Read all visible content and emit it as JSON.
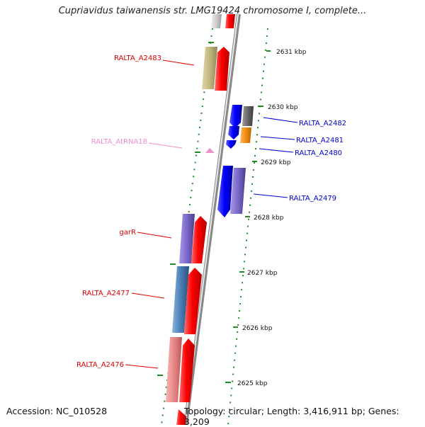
{
  "title": "Cupriavidus taiwanensis str. LMG19424 chromosome I, complete...",
  "footer": {
    "accession": "Accession: NC_010528",
    "topology": "Topology: circular; Length: 3,416,911 bp; Genes: 3,209"
  },
  "scale_labels": [
    "2631 kbp",
    "2630 kbp",
    "2629 kbp",
    "2628 kbp",
    "2627 kbp",
    "2626 kbp",
    "2625 kbp"
  ],
  "genes": [
    {
      "label": "RALTA_A2483",
      "color": "#dd0000",
      "feature_color": "#c2b780"
    },
    {
      "label": "RALTA_AtRNA18",
      "color": "#f08fc8",
      "feature_color": "#f08fc8"
    },
    {
      "label": "garR",
      "color": "#dd0000",
      "feature_color": "#7b68c8"
    },
    {
      "label": "RALTA_A2477",
      "color": "#dd0000",
      "feature_color": "#4a7fb5"
    },
    {
      "label": "RALTA_A2476",
      "color": "#dd0000",
      "feature_color": "#e88888"
    },
    {
      "label": "RALTA_A2482",
      "color": "#0000cc",
      "feature_color": "#666666"
    },
    {
      "label": "RALTA_A2481",
      "color": "#0000cc",
      "feature_color": "#f08c10"
    },
    {
      "label": "RALTA_A2480",
      "color": "#0000cc",
      "feature_color": "#0000ee"
    },
    {
      "label": "RALTA_A2479",
      "color": "#0000cc",
      "feature_color": "#7b68c8"
    }
  ],
  "colors": {
    "cds_forward": "#ee0000",
    "cds_reverse": "#0000ee",
    "backbone": "#999999",
    "tick": "#228b22"
  }
}
